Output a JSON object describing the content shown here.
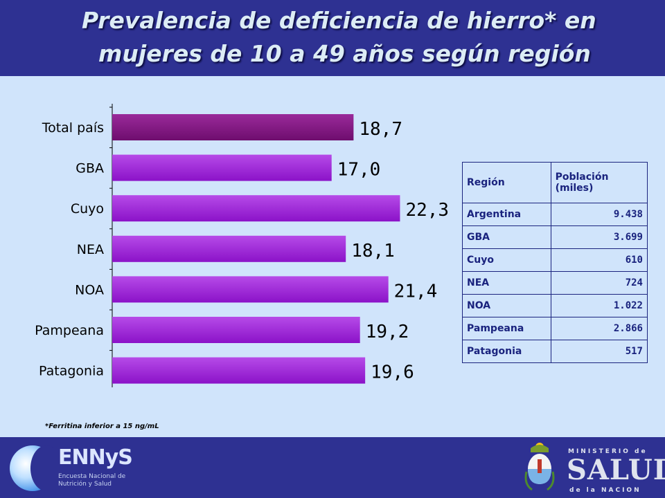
{
  "title": {
    "line1": "Prevalencia de deficiencia de hierro* en",
    "line2": "mujeres  de 10 a 49 años según región"
  },
  "chart_data": {
    "type": "bar",
    "orientation": "horizontal",
    "categories": [
      "Total país",
      "GBA",
      "Cuyo",
      "NEA",
      "NOA",
      "Pampeana",
      "Patagonia"
    ],
    "values": [
      18.7,
      17.0,
      22.3,
      18.1,
      21.4,
      19.2,
      19.6
    ],
    "value_labels": [
      "18,7",
      "17,0",
      "22,3",
      "18,1",
      "21,4",
      "19,2",
      "19,6"
    ],
    "xlim": [
      0,
      25
    ],
    "grid": false,
    "legend": "none",
    "colors": {
      "bar_highlight": "#6e0d6e",
      "bar": "#8b12c8"
    }
  },
  "footnote": "*Ferritina  inferior a 15 ng/mL",
  "table": {
    "headers": [
      "Región",
      "Población (miles)"
    ],
    "rows": [
      [
        "Argentina",
        "9.438"
      ],
      [
        "GBA",
        "3.699"
      ],
      [
        "Cuyo",
        "610"
      ],
      [
        "NEA",
        "724"
      ],
      [
        "NOA",
        "1.022"
      ],
      [
        "Pampeana",
        "2.866"
      ],
      [
        "Patagonia",
        "517"
      ]
    ]
  },
  "logos": {
    "ennys": {
      "name": "ENNyS",
      "subtitle": "Encuesta Nacional de Nutrición y Salud"
    },
    "ministerio": {
      "top": "MINISTERIO de",
      "main": "SALUD",
      "bottom": "de la NACION"
    }
  }
}
